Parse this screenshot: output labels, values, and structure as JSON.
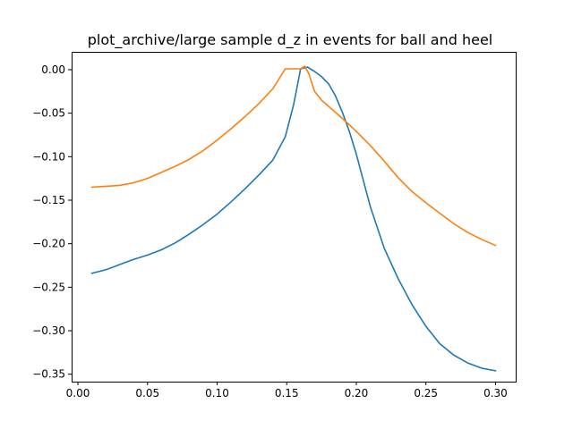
{
  "chart_data": {
    "type": "line",
    "title": "plot_archive/large sample d_z in events for ball and heel",
    "xlabel": "",
    "ylabel": "",
    "xlim": [
      -0.0045,
      0.3145
    ],
    "ylim": [
      -0.3585,
      0.0205
    ],
    "xticks": [
      0.0,
      0.05,
      0.1,
      0.15,
      0.2,
      0.25,
      0.3
    ],
    "xtick_labels": [
      "0.00",
      "0.05",
      "0.10",
      "0.15",
      "0.20",
      "0.25",
      "0.30"
    ],
    "yticks": [
      0.0,
      -0.05,
      -0.1,
      -0.15,
      -0.2,
      -0.25,
      -0.3,
      -0.35
    ],
    "ytick_labels": [
      "0.00",
      "−0.05",
      "−0.10",
      "−0.15",
      "−0.20",
      "−0.25",
      "−0.30",
      "−0.35"
    ],
    "grid": false,
    "series": [
      {
        "color": "#1f77b4",
        "x": [
          0.01,
          0.02,
          0.03,
          0.04,
          0.05,
          0.06,
          0.07,
          0.08,
          0.09,
          0.1,
          0.11,
          0.12,
          0.13,
          0.14,
          0.149,
          0.155,
          0.16,
          0.165,
          0.17,
          0.175,
          0.18,
          0.185,
          0.19,
          0.195,
          0.2,
          0.21,
          0.22,
          0.23,
          0.24,
          0.25,
          0.26,
          0.27,
          0.28,
          0.29,
          0.3
        ],
        "y": [
          -0.234,
          -0.23,
          -0.224,
          -0.218,
          -0.213,
          -0.207,
          -0.199,
          -0.189,
          -0.178,
          -0.166,
          -0.152,
          -0.137,
          -0.121,
          -0.104,
          -0.077,
          -0.04,
          0.001,
          0.003,
          -0.002,
          -0.008,
          -0.016,
          -0.03,
          -0.049,
          -0.071,
          -0.097,
          -0.157,
          -0.205,
          -0.24,
          -0.27,
          -0.295,
          -0.315,
          -0.328,
          -0.337,
          -0.343,
          -0.346
        ]
      },
      {
        "color": "#ff7f0e",
        "x": [
          0.01,
          0.02,
          0.03,
          0.04,
          0.05,
          0.06,
          0.07,
          0.08,
          0.09,
          0.1,
          0.11,
          0.12,
          0.13,
          0.14,
          0.149,
          0.155,
          0.16,
          0.163,
          0.166,
          0.17,
          0.175,
          0.18,
          0.19,
          0.2,
          0.21,
          0.22,
          0.23,
          0.24,
          0.25,
          0.26,
          0.27,
          0.28,
          0.29,
          0.3
        ],
        "y": [
          -0.135,
          -0.134,
          -0.133,
          -0.13,
          -0.125,
          -0.118,
          -0.111,
          -0.103,
          -0.093,
          -0.081,
          -0.068,
          -0.054,
          -0.039,
          -0.022,
          0.001,
          0.001,
          0.001,
          0.004,
          -0.005,
          -0.025,
          -0.035,
          -0.042,
          -0.056,
          -0.071,
          -0.087,
          -0.105,
          -0.124,
          -0.14,
          -0.153,
          -0.165,
          -0.177,
          -0.187,
          -0.195,
          -0.202
        ]
      }
    ]
  }
}
